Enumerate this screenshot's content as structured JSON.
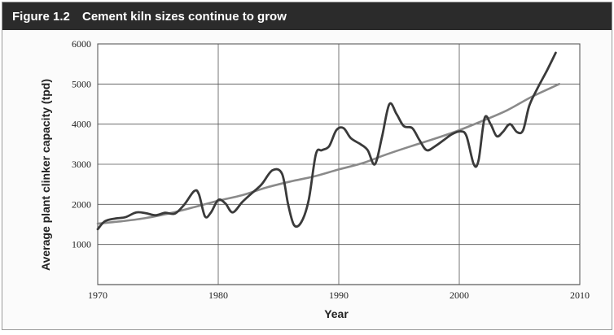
{
  "header": {
    "figure_label": "Figure 1.2",
    "title": "Cement kiln sizes continue to grow"
  },
  "chart_data": {
    "type": "line",
    "title": "Cement kiln sizes continue to grow",
    "xlabel": "Year",
    "ylabel": "Average plant clinker capacity (tpd)",
    "xlim": [
      1970,
      2010
    ],
    "ylim": [
      0,
      6000
    ],
    "x_ticks": [
      1970,
      1980,
      1990,
      2000,
      2010
    ],
    "y_ticks": [
      1000,
      2000,
      3000,
      4000,
      5000,
      6000
    ],
    "grid": true,
    "legend": "none",
    "series": [
      {
        "kind": "actual",
        "color": "#3a3a3a",
        "points": [
          [
            1970,
            1380
          ],
          [
            1970.6,
            1580
          ],
          [
            1971.5,
            1650
          ],
          [
            1972.3,
            1680
          ],
          [
            1973.2,
            1800
          ],
          [
            1974.0,
            1780
          ],
          [
            1974.8,
            1730
          ],
          [
            1975.6,
            1790
          ],
          [
            1976.4,
            1770
          ],
          [
            1977.2,
            2000
          ],
          [
            1978.0,
            2330
          ],
          [
            1978.4,
            2250
          ],
          [
            1978.9,
            1700
          ],
          [
            1979.4,
            1800
          ],
          [
            1980.0,
            2110
          ],
          [
            1980.6,
            2020
          ],
          [
            1981.2,
            1800
          ],
          [
            1982.0,
            2060
          ],
          [
            1982.8,
            2280
          ],
          [
            1983.6,
            2500
          ],
          [
            1984.5,
            2850
          ],
          [
            1985.3,
            2760
          ],
          [
            1985.8,
            2000
          ],
          [
            1986.3,
            1480
          ],
          [
            1986.9,
            1560
          ],
          [
            1987.5,
            2100
          ],
          [
            1988.1,
            3250
          ],
          [
            1988.6,
            3350
          ],
          [
            1989.2,
            3450
          ],
          [
            1989.8,
            3850
          ],
          [
            1990.4,
            3900
          ],
          [
            1991.0,
            3650
          ],
          [
            1991.8,
            3500
          ],
          [
            1992.4,
            3350
          ],
          [
            1993.0,
            3000
          ],
          [
            1993.6,
            3700
          ],
          [
            1994.2,
            4500
          ],
          [
            1994.8,
            4250
          ],
          [
            1995.4,
            3950
          ],
          [
            1996.1,
            3900
          ],
          [
            1996.7,
            3600
          ],
          [
            1997.3,
            3350
          ],
          [
            1998.0,
            3450
          ],
          [
            1998.7,
            3600
          ],
          [
            1999.4,
            3750
          ],
          [
            2000.1,
            3820
          ],
          [
            2000.6,
            3700
          ],
          [
            2001.2,
            3000
          ],
          [
            2001.6,
            3100
          ],
          [
            2002.1,
            4150
          ],
          [
            2002.6,
            4000
          ],
          [
            2003.1,
            3700
          ],
          [
            2003.6,
            3800
          ],
          [
            2004.2,
            4000
          ],
          [
            2004.8,
            3800
          ],
          [
            2005.3,
            3850
          ],
          [
            2005.8,
            4450
          ],
          [
            2006.5,
            4900
          ],
          [
            2007.3,
            5350
          ],
          [
            2008.0,
            5780
          ]
        ]
      },
      {
        "kind": "trend",
        "color": "#8a8a8a",
        "points": [
          [
            1970,
            1520
          ],
          [
            1972,
            1580
          ],
          [
            1974,
            1660
          ],
          [
            1976,
            1780
          ],
          [
            1978,
            1930
          ],
          [
            1980,
            2090
          ],
          [
            1982,
            2230
          ],
          [
            1984,
            2420
          ],
          [
            1986,
            2570
          ],
          [
            1988,
            2700
          ],
          [
            1990,
            2870
          ],
          [
            1992,
            3030
          ],
          [
            1994,
            3250
          ],
          [
            1996,
            3450
          ],
          [
            1998,
            3640
          ],
          [
            2000,
            3850
          ],
          [
            2002,
            4090
          ],
          [
            2004,
            4350
          ],
          [
            2006,
            4680
          ],
          [
            2008.3,
            5000
          ]
        ]
      }
    ]
  }
}
